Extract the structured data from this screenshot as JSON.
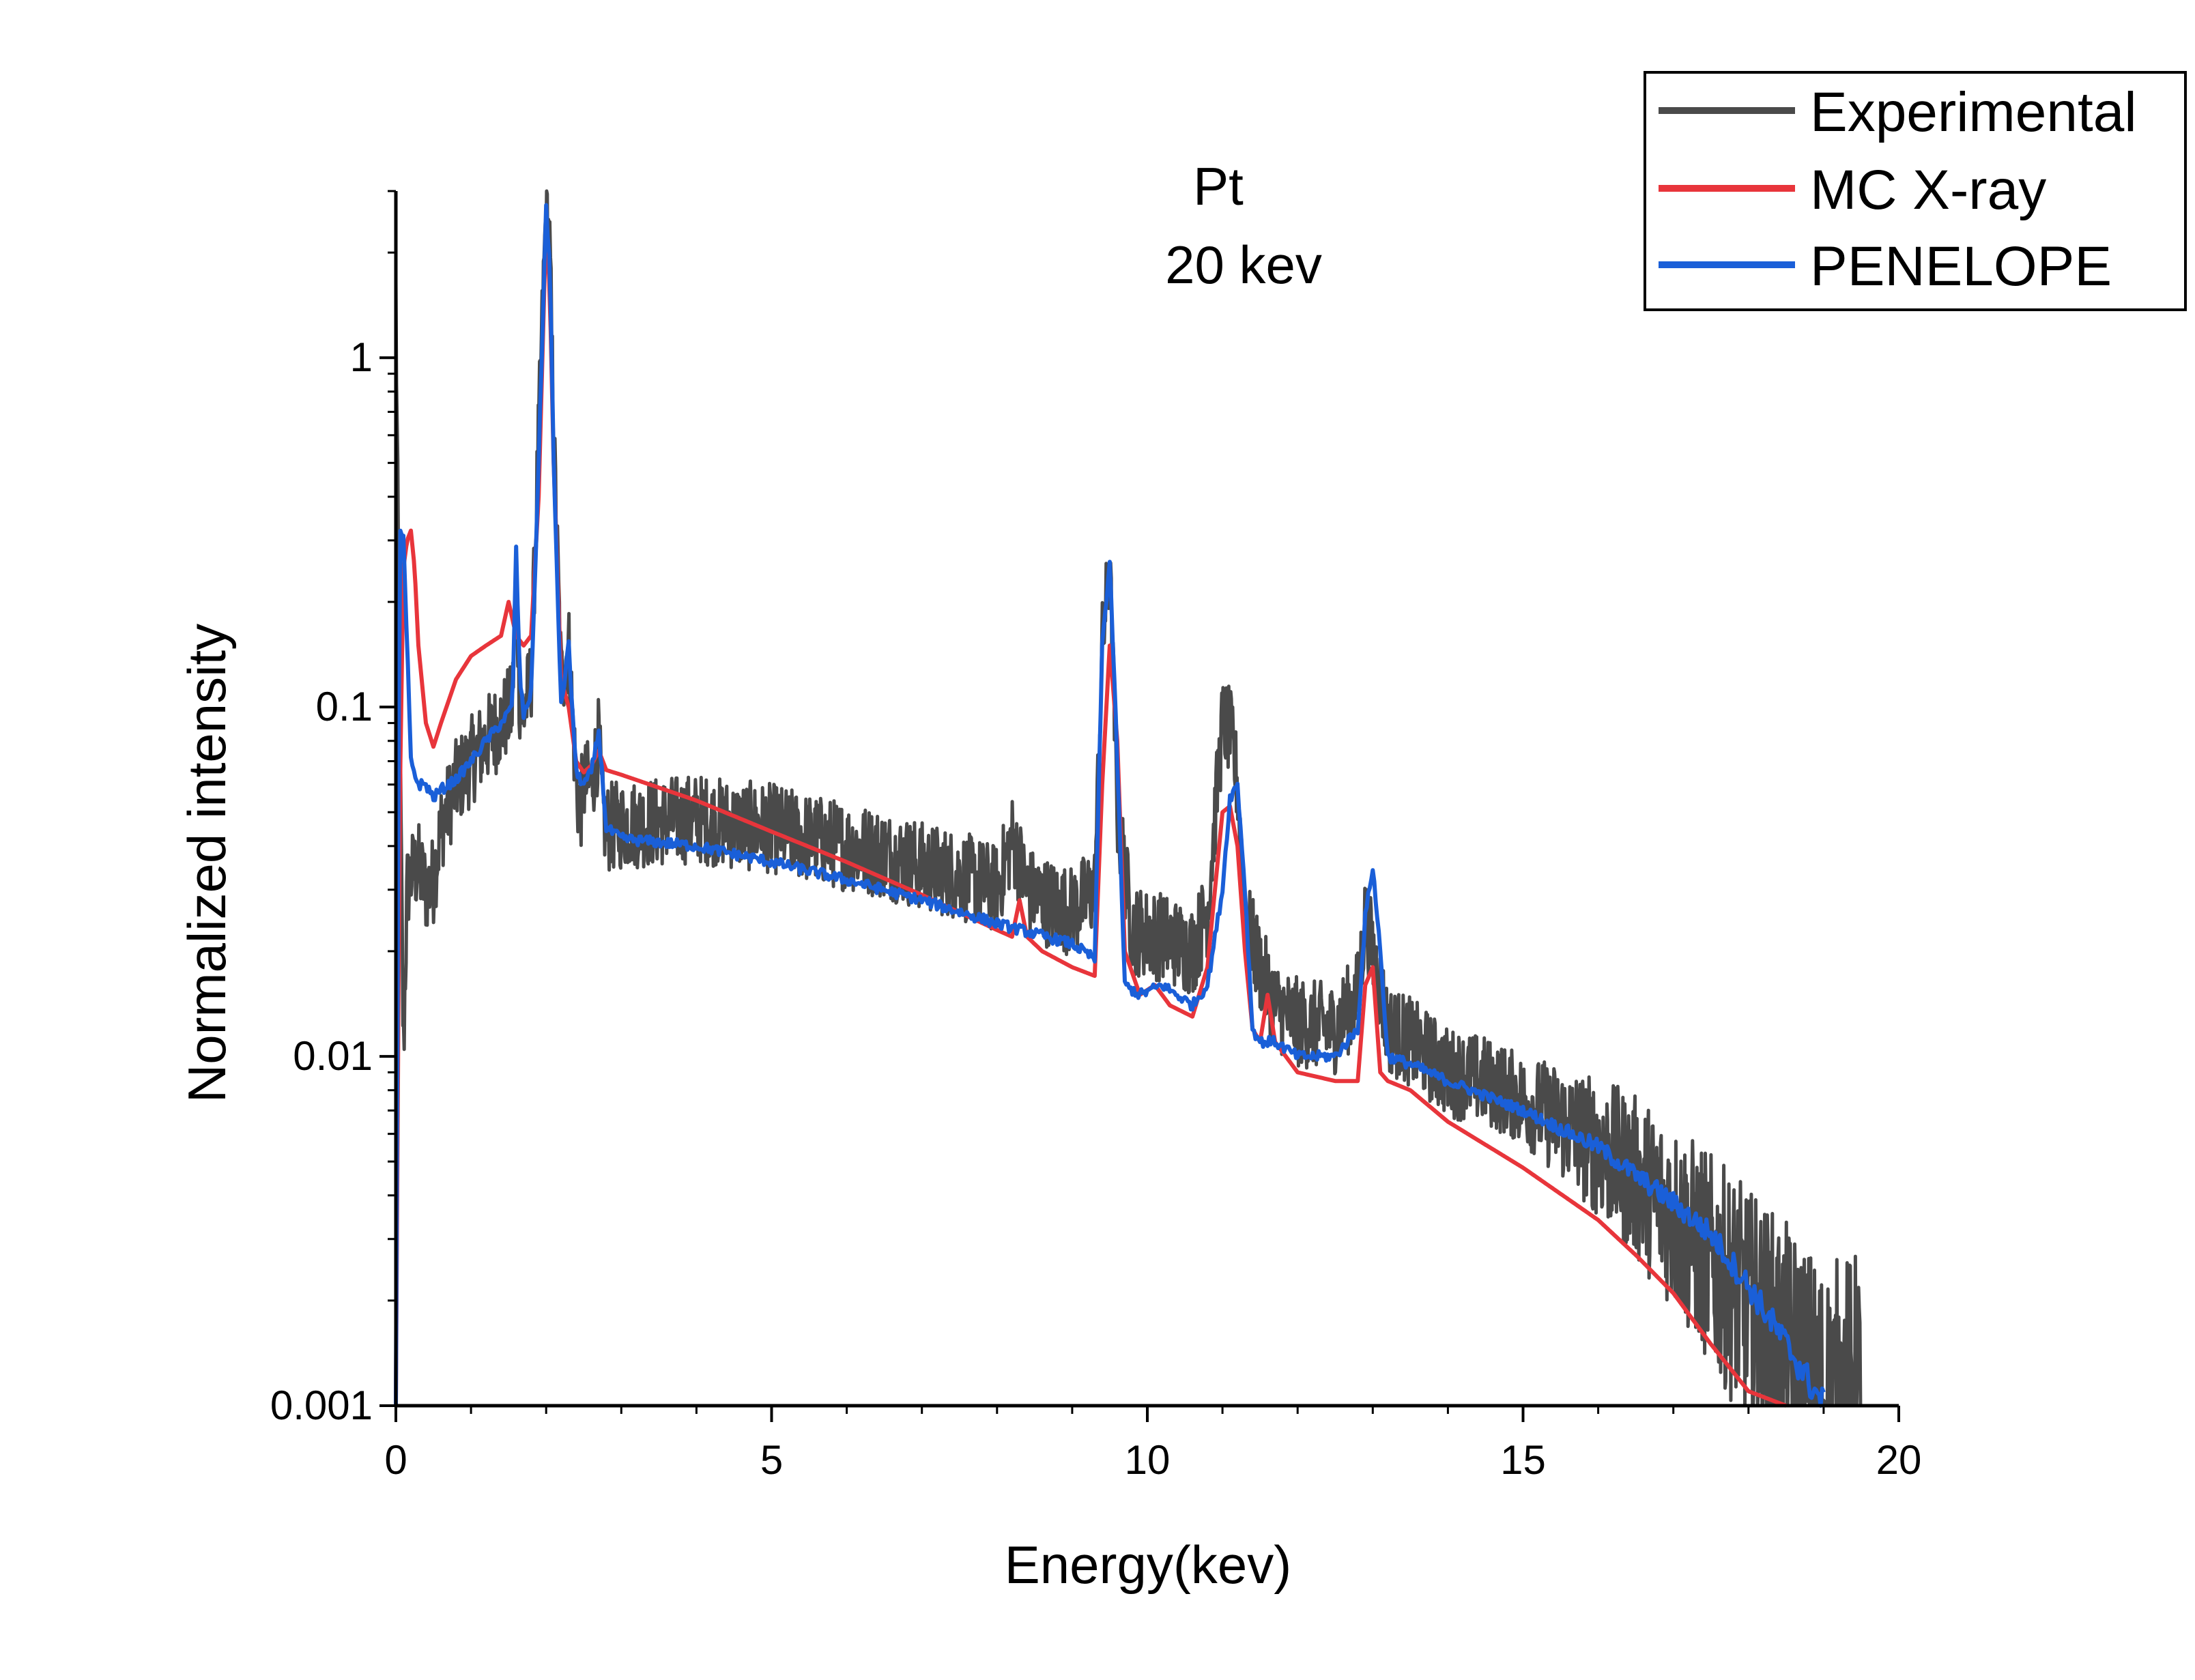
{
  "chart_data": {
    "type": "line",
    "title": "",
    "annotations": [
      "Pt",
      "20 kev"
    ],
    "xlabel": "Energy(kev)",
    "ylabel": "Normalized intensity",
    "xlim": [
      0,
      20
    ],
    "ylim": [
      0.001,
      3
    ],
    "yscale": "log",
    "xticks": [
      0,
      5,
      10,
      15,
      20
    ],
    "xtick_labels": [
      "0",
      "5",
      "10",
      "15",
      "20"
    ],
    "yticks": [
      0.001,
      0.01,
      0.1,
      1
    ],
    "ytick_labels": [
      "0.001",
      "0.01",
      "0.1",
      "1"
    ],
    "grid": false,
    "legend_position": "top-right",
    "series": [
      {
        "name": "Experimental",
        "color": "#4a4a4a",
        "noise": 0.13,
        "x": [
          0.0,
          0.05,
          0.1,
          0.15,
          0.2,
          0.3,
          0.4,
          0.5,
          0.6,
          0.8,
          1.0,
          1.2,
          1.4,
          1.55,
          1.6,
          1.65,
          1.7,
          1.8,
          1.9,
          2.0,
          2.05,
          2.1,
          2.2,
          2.3,
          2.4,
          2.45,
          2.5,
          2.6,
          2.7,
          2.75,
          2.8,
          3.0,
          3.5,
          4.0,
          4.5,
          5.0,
          5.5,
          6.0,
          6.5,
          7.0,
          7.5,
          8.0,
          8.2,
          8.3,
          8.4,
          8.6,
          9.0,
          9.3,
          9.4,
          9.5,
          9.6,
          9.8,
          10.2,
          10.6,
          10.8,
          11.0,
          11.1,
          11.2,
          11.3,
          11.5,
          11.7,
          12.0,
          12.5,
          12.8,
          12.9,
          13.0,
          13.2,
          13.5,
          14.0,
          14.5,
          15.0,
          15.5,
          16.0,
          16.5,
          17.0,
          17.5,
          18.0,
          18.5,
          19.0,
          19.5
        ],
        "y": [
          1.5,
          0.1,
          0.01,
          0.03,
          0.033,
          0.035,
          0.03,
          0.032,
          0.045,
          0.06,
          0.07,
          0.08,
          0.09,
          0.1,
          0.25,
          0.1,
          0.095,
          0.12,
          0.6,
          2.8,
          2.0,
          0.6,
          0.12,
          0.15,
          0.06,
          0.05,
          0.06,
          0.06,
          0.08,
          0.05,
          0.045,
          0.046,
          0.047,
          0.048,
          0.046,
          0.045,
          0.042,
          0.04,
          0.038,
          0.035,
          0.033,
          0.03,
          0.042,
          0.036,
          0.03,
          0.028,
          0.026,
          0.03,
          0.15,
          0.25,
          0.05,
          0.023,
          0.022,
          0.02,
          0.026,
          0.09,
          0.085,
          0.06,
          0.025,
          0.018,
          0.014,
          0.0125,
          0.012,
          0.015,
          0.025,
          0.02,
          0.012,
          0.011,
          0.009,
          0.0085,
          0.0075,
          0.0065,
          0.0055,
          0.0045,
          0.0035,
          0.0026,
          0.0019,
          0.0014,
          0.001,
          0.001
        ]
      },
      {
        "name": "MC X-ray",
        "color": "#e8353b",
        "noise": 0,
        "x": [
          0.0,
          0.05,
          0.1,
          0.15,
          0.2,
          0.25,
          0.3,
          0.4,
          0.5,
          0.6,
          0.8,
          1.0,
          1.2,
          1.4,
          1.5,
          1.6,
          1.7,
          1.8,
          1.9,
          2.0,
          2.05,
          2.1,
          2.2,
          2.3,
          2.4,
          2.5,
          2.6,
          2.7,
          2.8,
          3.0,
          4.0,
          5.0,
          6.0,
          7.0,
          8.0,
          8.2,
          8.3,
          8.4,
          8.6,
          9.0,
          9.3,
          9.4,
          9.5,
          9.6,
          9.7,
          9.9,
          10.1,
          10.3,
          10.6,
          10.8,
          11.0,
          11.1,
          11.2,
          11.3,
          11.4,
          11.5,
          11.6,
          11.7,
          12.0,
          12.5,
          12.8,
          12.9,
          13.0,
          13.1,
          13.2,
          13.5,
          14.0,
          15.0,
          16.0,
          16.5,
          17.0,
          17.5,
          18.0,
          18.5
        ],
        "y": [
          0.001,
          0.05,
          0.25,
          0.3,
          0.32,
          0.25,
          0.15,
          0.09,
          0.077,
          0.09,
          0.12,
          0.14,
          0.15,
          0.16,
          0.2,
          0.16,
          0.15,
          0.16,
          0.4,
          2.5,
          1.5,
          0.5,
          0.12,
          0.1,
          0.07,
          0.065,
          0.068,
          0.075,
          0.066,
          0.064,
          0.054,
          0.044,
          0.036,
          0.029,
          0.023,
          0.022,
          0.028,
          0.022,
          0.02,
          0.018,
          0.017,
          0.06,
          0.15,
          0.08,
          0.02,
          0.015,
          0.016,
          0.014,
          0.013,
          0.018,
          0.05,
          0.052,
          0.04,
          0.02,
          0.012,
          0.011,
          0.015,
          0.011,
          0.009,
          0.0085,
          0.0085,
          0.016,
          0.018,
          0.009,
          0.0085,
          0.008,
          0.0065,
          0.0048,
          0.0034,
          0.0027,
          0.0021,
          0.0015,
          0.0011,
          0.001
        ]
      },
      {
        "name": "PENELOPE",
        "color": "#1a5fd8",
        "noise": 0.015,
        "x": [
          0.0,
          0.05,
          0.1,
          0.15,
          0.2,
          0.3,
          0.4,
          0.5,
          0.6,
          0.8,
          1.0,
          1.2,
          1.4,
          1.55,
          1.6,
          1.65,
          1.7,
          1.8,
          1.9,
          2.0,
          2.05,
          2.1,
          2.2,
          2.3,
          2.4,
          2.5,
          2.6,
          2.7,
          2.8,
          3.0,
          4.0,
          5.0,
          6.0,
          7.0,
          8.0,
          9.0,
          9.3,
          9.4,
          9.5,
          9.6,
          9.7,
          9.9,
          10.2,
          10.6,
          10.8,
          11.0,
          11.1,
          11.2,
          11.3,
          11.4,
          11.5,
          11.7,
          12.0,
          12.5,
          12.8,
          12.9,
          13.0,
          13.1,
          13.2,
          13.5,
          14.0,
          15.0,
          16.0,
          17.0,
          17.5,
          18.0,
          18.5,
          19.0
        ],
        "y": [
          0.001,
          0.32,
          0.3,
          0.15,
          0.07,
          0.06,
          0.06,
          0.055,
          0.058,
          0.062,
          0.07,
          0.08,
          0.09,
          0.1,
          0.28,
          0.12,
          0.095,
          0.11,
          0.5,
          2.7,
          1.8,
          0.5,
          0.1,
          0.15,
          0.065,
          0.06,
          0.065,
          0.085,
          0.045,
          0.042,
          0.04,
          0.036,
          0.032,
          0.028,
          0.024,
          0.021,
          0.019,
          0.15,
          0.26,
          0.07,
          0.016,
          0.015,
          0.016,
          0.014,
          0.016,
          0.03,
          0.055,
          0.06,
          0.03,
          0.012,
          0.011,
          0.011,
          0.01,
          0.01,
          0.012,
          0.025,
          0.035,
          0.02,
          0.01,
          0.0095,
          0.0085,
          0.007,
          0.0055,
          0.0038,
          0.0031,
          0.0022,
          0.0015,
          0.001
        ]
      }
    ]
  }
}
